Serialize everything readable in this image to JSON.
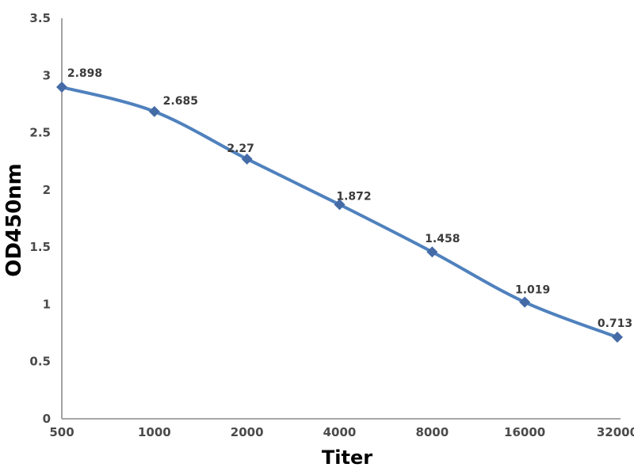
{
  "chart_data": {
    "type": "line",
    "title": "",
    "xlabel": "Titer",
    "ylabel": "OD450nm",
    "categories": [
      "500",
      "1000",
      "2000",
      "4000",
      "8000",
      "16000",
      "32000"
    ],
    "series": [
      {
        "name": "OD450nm",
        "values": [
          2.898,
          2.685,
          2.27,
          1.872,
          1.458,
          1.019,
          0.713
        ],
        "labels": [
          "2.898",
          "2.685",
          "2.27",
          "1.872",
          "1.458",
          "1.019",
          "0.713"
        ]
      }
    ],
    "y_tick_values": [
      0,
      0.5,
      1,
      1.5,
      2,
      2.5,
      3,
      3.5
    ],
    "y_tick_labels": [
      "0",
      "0.5",
      "1",
      "1.5",
      "2",
      "2.5",
      "3",
      "3.5"
    ],
    "ylim": [
      0,
      3.5
    ],
    "grid": false,
    "legend": "none",
    "smoothed": true,
    "marker_shape": "diamond",
    "colors": {
      "line": "#4f81bd",
      "marker": "#446ba6",
      "axis": "#8c8c8c",
      "tick_text": "#4a4a4a",
      "data_label_text": "#3b3b3b",
      "axis_title_text": "#141414"
    }
  }
}
